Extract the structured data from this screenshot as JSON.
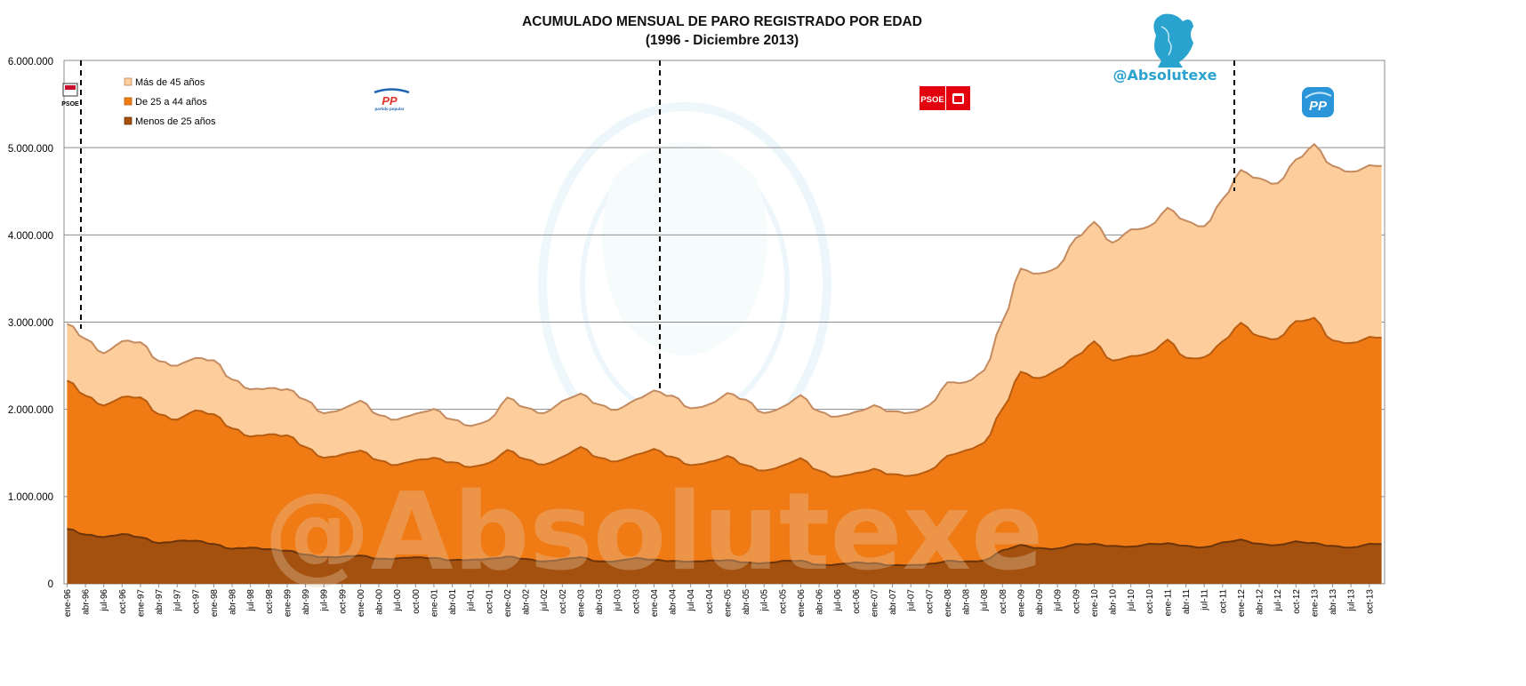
{
  "chart_data": {
    "type": "area",
    "stacked": true,
    "title": "ACUMULADO MENSUAL DE PARO REGISTRADO POR EDAD",
    "subtitle": "(1996 - Diciembre 2013)",
    "ylim": [
      0,
      6000000
    ],
    "y_ticks": [
      "0",
      "1.000.000",
      "2.000.000",
      "3.000.000",
      "4.000.000",
      "5.000.000",
      "6.000.000"
    ],
    "grid": "horizontal",
    "legend_position": "top-left",
    "x_tick_labels": [
      "ene-96",
      "abr-96",
      "jul-96",
      "oct-96",
      "ene-97",
      "abr-97",
      "jul-97",
      "oct-97",
      "ene-98",
      "abr-98",
      "jul-98",
      "oct-98",
      "ene-99",
      "abr-99",
      "jul-99",
      "oct-99",
      "ene-00",
      "abr-00",
      "jul-00",
      "oct-00",
      "ene-01",
      "abr-01",
      "jul-01",
      "oct-01",
      "ene-02",
      "abr-02",
      "jul-02",
      "oct-02",
      "ene-03",
      "abr-03",
      "jul-03",
      "oct-03",
      "ene-04",
      "abr-04",
      "jul-04",
      "oct-04",
      "ene-05",
      "abr-05",
      "jul-05",
      "oct-05",
      "ene-06",
      "abr-06",
      "jul-06",
      "oct-06",
      "ene-07",
      "abr-07",
      "jul-07",
      "oct-07",
      "ene-08",
      "abr-08",
      "jul-08",
      "oct-08",
      "ene-09",
      "abr-09",
      "jul-09",
      "oct-09",
      "ene-10",
      "abr-10",
      "jul-10",
      "oct-10",
      "ene-11",
      "abr-11",
      "jul-11",
      "oct-11",
      "ene-12",
      "abr-12",
      "jul-12",
      "oct-12",
      "ene-13",
      "abr-13",
      "jul-13",
      "oct-13"
    ],
    "series_names": [
      "Más de 45 años",
      "De 25 a 44 años",
      "Menos de 25 años"
    ],
    "colors": {
      "mas_45": "#fdcd9c",
      "de_25_44": "#f07a14",
      "menos_25": "#a4510f",
      "mas_45_edge": "#c48a60",
      "de_25_44_edge": "#b75c10",
      "menos_25_edge": "#6b340a"
    },
    "quarterly_totals": {
      "menos_25": [
        630000,
        560000,
        540000,
        570000,
        530000,
        470000,
        490000,
        490000,
        460000,
        400000,
        410000,
        400000,
        380000,
        330000,
        310000,
        310000,
        320000,
        290000,
        290000,
        300000,
        300000,
        270000,
        270000,
        290000,
        310000,
        280000,
        260000,
        280000,
        300000,
        260000,
        260000,
        290000,
        280000,
        260000,
        250000,
        270000,
        270000,
        240000,
        240000,
        260000,
        260000,
        220000,
        220000,
        240000,
        240000,
        210000,
        210000,
        230000,
        260000,
        250000,
        270000,
        380000,
        440000,
        410000,
        400000,
        450000,
        460000,
        430000,
        420000,
        460000,
        460000,
        430000,
        420000,
        470000,
        500000,
        460000,
        440000,
        480000,
        470000,
        430000,
        410000,
        460000
      ],
      "de_25_44": [
        2330000,
        2150000,
        2050000,
        2140000,
        2130000,
        1950000,
        1880000,
        1980000,
        1950000,
        1780000,
        1680000,
        1720000,
        1700000,
        1560000,
        1450000,
        1480000,
        1520000,
        1420000,
        1360000,
        1410000,
        1450000,
        1390000,
        1330000,
        1390000,
        1530000,
        1420000,
        1370000,
        1450000,
        1560000,
        1450000,
        1400000,
        1470000,
        1550000,
        1450000,
        1350000,
        1400000,
        1460000,
        1350000,
        1300000,
        1350000,
        1430000,
        1300000,
        1220000,
        1260000,
        1320000,
        1250000,
        1230000,
        1300000,
        1460000,
        1520000,
        1620000,
        2000000,
        2420000,
        2360000,
        2450000,
        2600000,
        2780000,
        2550000,
        2600000,
        2650000,
        2790000,
        2580000,
        2600000,
        2770000,
        2980000,
        2840000,
        2800000,
        3000000,
        3050000,
        2780000,
        2750000,
        2830000
      ],
      "total": [
        2980000,
        2800000,
        2650000,
        2780000,
        2760000,
        2560000,
        2500000,
        2580000,
        2570000,
        2340000,
        2220000,
        2250000,
        2230000,
        2100000,
        1960000,
        2000000,
        2090000,
        1940000,
        1880000,
        1940000,
        2010000,
        1880000,
        1800000,
        1880000,
        2130000,
        2010000,
        1960000,
        2090000,
        2170000,
        2060000,
        1990000,
        2100000,
        2220000,
        2150000,
        2000000,
        2060000,
        2180000,
        2100000,
        1960000,
        2020000,
        2150000,
        1980000,
        1910000,
        1960000,
        2050000,
        1970000,
        1950000,
        2050000,
        2300000,
        2300000,
        2450000,
        3000000,
        3600000,
        3560000,
        3620000,
        3950000,
        4150000,
        3900000,
        4050000,
        4100000,
        4300000,
        4150000,
        4100000,
        4400000,
        4730000,
        4650000,
        4580000,
        4850000,
        5040000,
        4780000,
        4710000,
        4800000
      ]
    }
  },
  "legend": {
    "item_1": "Más de 45 años",
    "item_2": "De 25 a 44 años",
    "item_3": "Menos de 25 años"
  },
  "watermark": {
    "handle": "@Absolutexe",
    "background_text": "@Absolutexe"
  },
  "party_logos": {
    "psoe_1996": "PSOE",
    "pp_1996": "PP",
    "psoe_2004": "PSOE",
    "pp_2011": "PP"
  },
  "party_logo_captions": {
    "pp_1996": "partido popular"
  },
  "government_changes": [
    "abr-96",
    "abr-04",
    "dic-11"
  ]
}
